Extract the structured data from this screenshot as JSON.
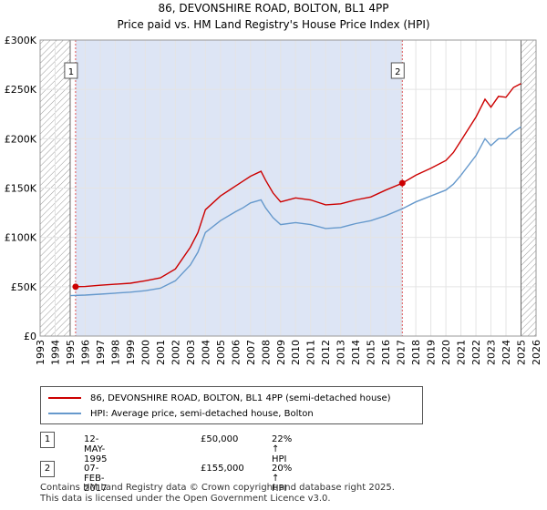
{
  "title": "86, DEVONSHIRE ROAD, BOLTON, BL1 4PP",
  "subtitle": "Price paid vs. HM Land Registry's House Price Index (HPI)",
  "chart_data": {
    "type": "line",
    "ylim": [
      0,
      300000
    ],
    "xlim": [
      1993,
      2026
    ],
    "y_ticks": [
      0,
      50000,
      100000,
      150000,
      200000,
      250000,
      300000
    ],
    "y_tick_labels": [
      "£0",
      "£50K",
      "£100K",
      "£150K",
      "£200K",
      "£250K",
      "£300K"
    ],
    "x_ticks": [
      1993,
      1994,
      1995,
      1996,
      1997,
      1998,
      1999,
      2000,
      2001,
      2002,
      2003,
      2004,
      2005,
      2006,
      2007,
      2008,
      2009,
      2010,
      2011,
      2012,
      2013,
      2014,
      2015,
      2016,
      2017,
      2018,
      2019,
      2020,
      2021,
      2022,
      2023,
      2024,
      2025,
      2026
    ],
    "grid": true,
    "shaded_regions": [
      [
        1995.36,
        2017.1
      ]
    ],
    "hatched_regions": [
      [
        1993,
        1995.0
      ],
      [
        2025.0,
        2026
      ]
    ],
    "series": [
      {
        "name": "86, DEVONSHIRE ROAD, BOLTON, BL1 4PP (semi-detached house)",
        "color": "#cc0000",
        "points": [
          [
            1995.36,
            50000
          ],
          [
            1996,
            50200
          ],
          [
            1997,
            51500
          ],
          [
            1998,
            52500
          ],
          [
            1999,
            53500
          ],
          [
            2000,
            56000
          ],
          [
            2001,
            59000
          ],
          [
            2002,
            68000
          ],
          [
            2003,
            90000
          ],
          [
            2003.5,
            105000
          ],
          [
            2004,
            128000
          ],
          [
            2005,
            142000
          ],
          [
            2006,
            152000
          ],
          [
            2006.5,
            157000
          ],
          [
            2007,
            162000
          ],
          [
            2007.7,
            167000
          ],
          [
            2008,
            158000
          ],
          [
            2008.5,
            145000
          ],
          [
            2009,
            136000
          ],
          [
            2010,
            140000
          ],
          [
            2011,
            138000
          ],
          [
            2012,
            133000
          ],
          [
            2013,
            134000
          ],
          [
            2014,
            138000
          ],
          [
            2015,
            141000
          ],
          [
            2016,
            148000
          ],
          [
            2017.1,
            155000
          ],
          [
            2018,
            163000
          ],
          [
            2019,
            170000
          ],
          [
            2020,
            178000
          ],
          [
            2020.5,
            186000
          ],
          [
            2021,
            198000
          ],
          [
            2022,
            222000
          ],
          [
            2022.6,
            240000
          ],
          [
            2023,
            232000
          ],
          [
            2023.5,
            243000
          ],
          [
            2024,
            242000
          ],
          [
            2024.5,
            252000
          ],
          [
            2025,
            256000
          ]
        ]
      },
      {
        "name": "HPI: Average price, semi-detached house, Bolton",
        "color": "#6699cc",
        "points": [
          [
            1995,
            41000
          ],
          [
            1996,
            41500
          ],
          [
            1997,
            42500
          ],
          [
            1998,
            43500
          ],
          [
            1999,
            44500
          ],
          [
            2000,
            46000
          ],
          [
            2001,
            48500
          ],
          [
            2002,
            56000
          ],
          [
            2003,
            72000
          ],
          [
            2003.5,
            85000
          ],
          [
            2004,
            105000
          ],
          [
            2005,
            117000
          ],
          [
            2006,
            126000
          ],
          [
            2006.5,
            130000
          ],
          [
            2007,
            135000
          ],
          [
            2007.7,
            138000
          ],
          [
            2008,
            130000
          ],
          [
            2008.5,
            120000
          ],
          [
            2009,
            113000
          ],
          [
            2010,
            115000
          ],
          [
            2011,
            113000
          ],
          [
            2012,
            109000
          ],
          [
            2013,
            110000
          ],
          [
            2014,
            114000
          ],
          [
            2015,
            117000
          ],
          [
            2016,
            122000
          ],
          [
            2017.1,
            129000
          ],
          [
            2018,
            136000
          ],
          [
            2019,
            142000
          ],
          [
            2020,
            148000
          ],
          [
            2020.5,
            154000
          ],
          [
            2021,
            163000
          ],
          [
            2022,
            183000
          ],
          [
            2022.6,
            200000
          ],
          [
            2023,
            193000
          ],
          [
            2023.5,
            200000
          ],
          [
            2024,
            200000
          ],
          [
            2024.5,
            207000
          ],
          [
            2025,
            212000
          ]
        ]
      }
    ],
    "sales": [
      {
        "id": "1",
        "x": 1995.36,
        "y": 50000
      },
      {
        "id": "2",
        "x": 2017.1,
        "y": 155000
      }
    ]
  },
  "legend": {
    "items": [
      {
        "label": "86, DEVONSHIRE ROAD, BOLTON, BL1 4PP (semi-detached house)",
        "color": "#cc0000"
      },
      {
        "label": "HPI: Average price, semi-detached house, Bolton",
        "color": "#6699cc"
      }
    ]
  },
  "sales_table": [
    {
      "id": "1",
      "date": "12-MAY-1995",
      "price": "£50,000",
      "hpi": "22% ↑ HPI"
    },
    {
      "id": "2",
      "date": "07-FEB-2017",
      "price": "£155,000",
      "hpi": "20% ↑ HPI"
    }
  ],
  "footer": {
    "line1": "Contains HM Land Registry data © Crown copyright and database right 2025.",
    "line2": "This data is licensed under the Open Government Licence v3.0."
  }
}
